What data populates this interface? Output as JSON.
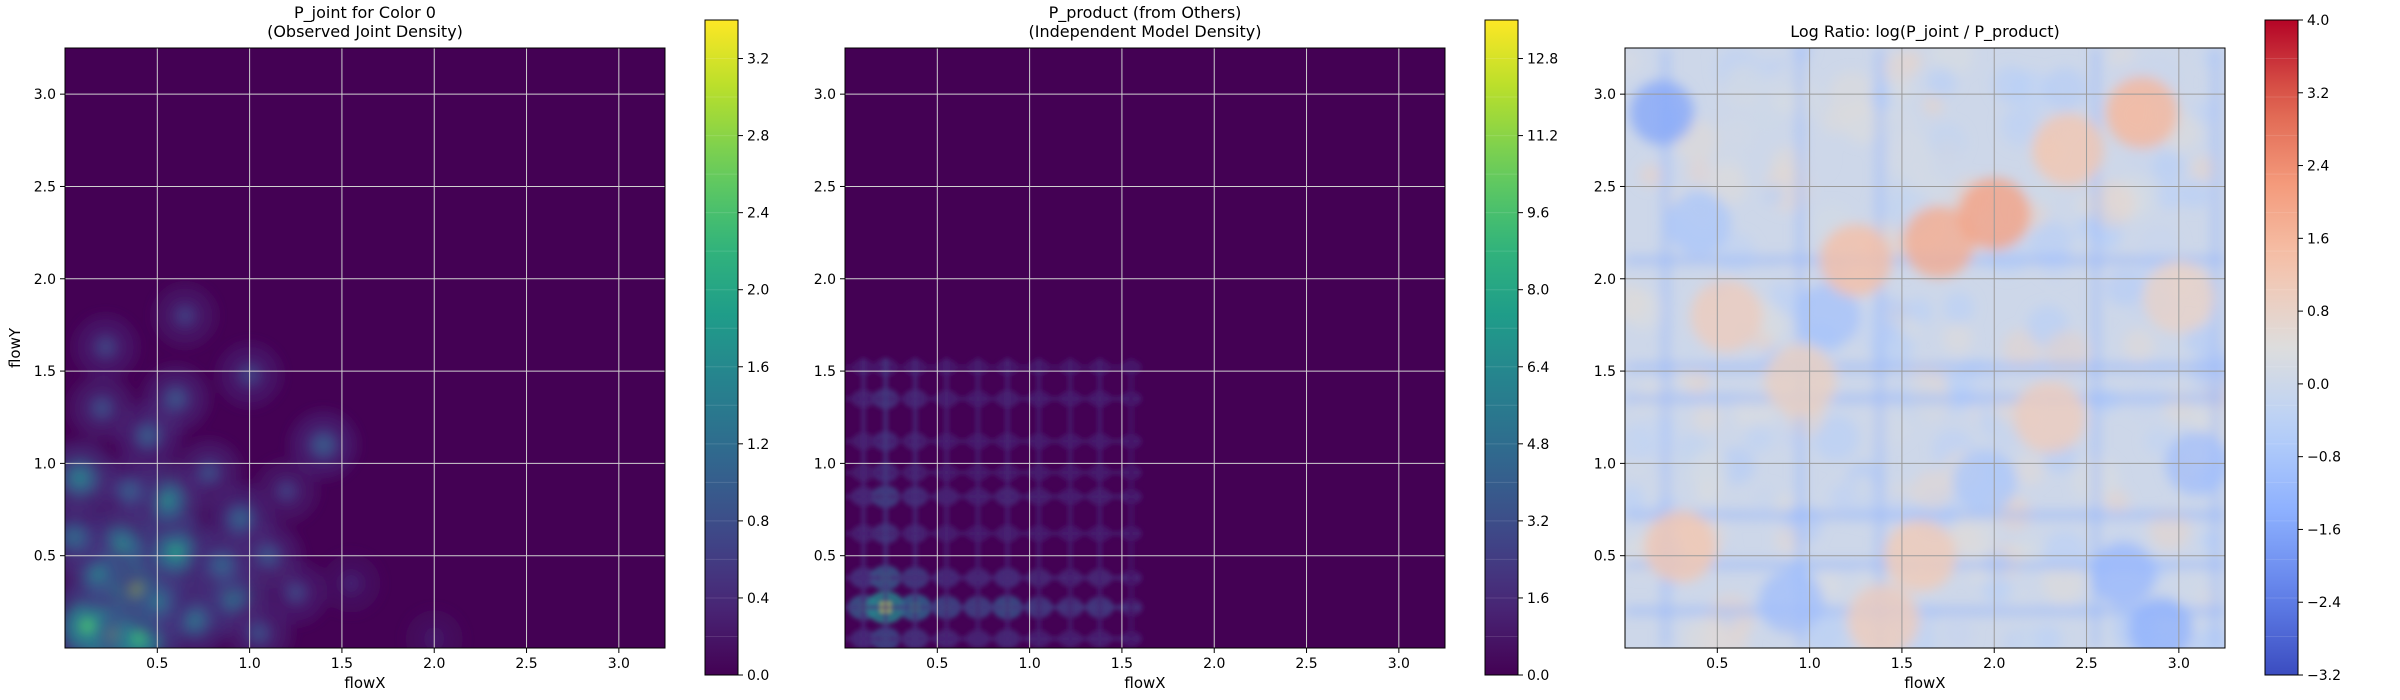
{
  "figure": {
    "panel_count": 3
  },
  "chart_data": [
    {
      "type": "heatmap",
      "title_lines": [
        "P_joint for Color 0",
        "(Observed Joint Density)"
      ],
      "xlabel": "flowX",
      "ylabel": "flowY",
      "xlim": [
        0.0,
        3.25
      ],
      "ylim": [
        0.0,
        3.25
      ],
      "xticks": [
        0.5,
        1.0,
        1.5,
        2.0,
        2.5,
        3.0
      ],
      "yticks": [
        0.5,
        1.0,
        1.5,
        2.0,
        2.5,
        3.0
      ],
      "grid": true,
      "colormap": "viridis",
      "colorbar": {
        "min": 0.0,
        "max": 3.4,
        "ticks": [
          0.0,
          0.4,
          0.8,
          1.2,
          1.6,
          2.0,
          2.4,
          2.8,
          3.2
        ]
      },
      "background_value": 0.0,
      "hotspots": [
        {
          "x": 0.25,
          "y": 0.08,
          "value": 3.2
        },
        {
          "x": 0.38,
          "y": 0.32,
          "value": 2.9
        },
        {
          "x": 0.12,
          "y": 0.12,
          "value": 2.4
        },
        {
          "x": 0.4,
          "y": 0.05,
          "value": 2.3
        },
        {
          "x": 0.6,
          "y": 0.52,
          "value": 2.0
        },
        {
          "x": 0.55,
          "y": 0.8,
          "value": 1.8
        },
        {
          "x": 0.3,
          "y": 0.55,
          "value": 1.9
        },
        {
          "x": 0.08,
          "y": 0.92,
          "value": 1.7
        },
        {
          "x": 0.9,
          "y": 0.28,
          "value": 1.6
        },
        {
          "x": 0.7,
          "y": 0.15,
          "value": 1.5
        },
        {
          "x": 0.95,
          "y": 0.7,
          "value": 1.3
        },
        {
          "x": 0.45,
          "y": 1.15,
          "value": 1.2
        },
        {
          "x": 0.2,
          "y": 1.3,
          "value": 1.0
        },
        {
          "x": 0.6,
          "y": 1.35,
          "value": 1.1
        },
        {
          "x": 1.05,
          "y": 0.08,
          "value": 1.0
        },
        {
          "x": 1.1,
          "y": 0.5,
          "value": 1.1
        },
        {
          "x": 1.4,
          "y": 1.1,
          "value": 1.2
        },
        {
          "x": 1.0,
          "y": 1.48,
          "value": 0.9
        },
        {
          "x": 0.65,
          "y": 1.8,
          "value": 0.8
        },
        {
          "x": 0.22,
          "y": 1.63,
          "value": 0.9
        },
        {
          "x": 0.18,
          "y": 0.4,
          "value": 1.6
        },
        {
          "x": 0.5,
          "y": 0.25,
          "value": 1.5
        },
        {
          "x": 0.78,
          "y": 0.95,
          "value": 1.0
        },
        {
          "x": 1.2,
          "y": 0.85,
          "value": 0.8
        },
        {
          "x": 0.05,
          "y": 0.6,
          "value": 1.4
        },
        {
          "x": 0.35,
          "y": 0.85,
          "value": 1.2
        },
        {
          "x": 1.25,
          "y": 0.3,
          "value": 0.9
        },
        {
          "x": 0.85,
          "y": 0.45,
          "value": 1.3
        },
        {
          "x": 2.0,
          "y": 0.05,
          "value": 0.4
        },
        {
          "x": 1.55,
          "y": 0.35,
          "value": 0.5
        }
      ]
    },
    {
      "type": "heatmap",
      "title_lines": [
        "P_product (from Others)",
        "(Independent Model Density)"
      ],
      "xlabel": "flowX",
      "ylabel": "",
      "xlim": [
        0.0,
        3.25
      ],
      "ylim": [
        0.0,
        3.25
      ],
      "xticks": [
        0.5,
        1.0,
        1.5,
        2.0,
        2.5,
        3.0
      ],
      "yticks": [
        0.5,
        1.0,
        1.5,
        2.0,
        2.5,
        3.0
      ],
      "grid": true,
      "colormap": "viridis",
      "colorbar": {
        "min": 0.0,
        "max": 13.6,
        "ticks": [
          0.0,
          1.6,
          3.2,
          4.8,
          6.4,
          8.0,
          9.6,
          11.2,
          12.8
        ]
      },
      "background_value": 0.0,
      "marginal_peaks_x": [
        {
          "x": 0.1,
          "w": 0.6
        },
        {
          "x": 0.22,
          "w": 1.0
        },
        {
          "x": 0.38,
          "w": 0.7
        },
        {
          "x": 0.55,
          "w": 0.5
        },
        {
          "x": 0.72,
          "w": 0.45
        },
        {
          "x": 0.88,
          "w": 0.55
        },
        {
          "x": 1.05,
          "w": 0.4
        },
        {
          "x": 1.22,
          "w": 0.35
        },
        {
          "x": 1.38,
          "w": 0.4
        },
        {
          "x": 1.55,
          "w": 0.2
        }
      ],
      "marginal_peaks_y": [
        {
          "y": 0.05,
          "w": 0.5
        },
        {
          "y": 0.22,
          "w": 1.0
        },
        {
          "y": 0.38,
          "w": 0.6
        },
        {
          "y": 0.62,
          "w": 0.35
        },
        {
          "y": 0.82,
          "w": 0.45
        },
        {
          "y": 0.95,
          "w": 0.3
        },
        {
          "y": 1.12,
          "w": 0.3
        },
        {
          "y": 1.35,
          "w": 0.35
        },
        {
          "y": 1.52,
          "w": 0.2
        }
      ],
      "peak_value": 12.8
    },
    {
      "type": "heatmap",
      "title_lines": [
        "Log Ratio: log(P_joint / P_product)"
      ],
      "xlabel": "flowX",
      "ylabel": "",
      "xlim": [
        0.0,
        3.25
      ],
      "ylim": [
        0.0,
        3.25
      ],
      "xticks": [
        0.5,
        1.0,
        1.5,
        2.0,
        2.5,
        3.0
      ],
      "yticks": [
        0.5,
        1.0,
        1.5,
        2.0,
        2.5,
        3.0
      ],
      "grid": true,
      "colormap": "coolwarm",
      "colorbar": {
        "min": -3.2,
        "max": 4.0,
        "ticks": [
          -3.2,
          -2.4,
          -1.6,
          -0.8,
          0.0,
          0.8,
          1.6,
          2.4,
          3.2,
          4.0
        ],
        "tick_labels": [
          "−3.2",
          "−2.4",
          "−1.6",
          "−0.8",
          "0.0",
          "0.8",
          "1.6",
          "2.4",
          "3.2",
          "4.0"
        ]
      },
      "warm_regions": [
        {
          "x": 1.7,
          "y": 2.2,
          "value": 1.8
        },
        {
          "x": 2.0,
          "y": 2.35,
          "value": 2.0
        },
        {
          "x": 2.8,
          "y": 2.9,
          "value": 1.6
        },
        {
          "x": 2.4,
          "y": 2.7,
          "value": 1.2
        },
        {
          "x": 1.25,
          "y": 2.1,
          "value": 1.4
        },
        {
          "x": 0.55,
          "y": 1.8,
          "value": 1.0
        },
        {
          "x": 0.3,
          "y": 0.55,
          "value": 1.2
        },
        {
          "x": 1.6,
          "y": 0.5,
          "value": 1.1
        },
        {
          "x": 2.3,
          "y": 1.25,
          "value": 1.0
        },
        {
          "x": 1.4,
          "y": 0.15,
          "value": 1.0
        },
        {
          "x": 0.95,
          "y": 1.45,
          "value": 0.9
        },
        {
          "x": 3.0,
          "y": 1.9,
          "value": 0.8
        }
      ],
      "cool_regions": [
        {
          "x": 0.2,
          "y": 2.9,
          "value": -1.6
        },
        {
          "x": 1.1,
          "y": 1.8,
          "value": -0.9
        },
        {
          "x": 0.9,
          "y": 0.25,
          "value": -1.0
        },
        {
          "x": 2.7,
          "y": 0.4,
          "value": -1.2
        },
        {
          "x": 0.4,
          "y": 2.3,
          "value": -0.8
        },
        {
          "x": 3.1,
          "y": 1.0,
          "value": -1.0
        },
        {
          "x": 1.95,
          "y": 0.9,
          "value": -0.8
        },
        {
          "x": 2.9,
          "y": 0.1,
          "value": -1.4
        }
      ],
      "cool_lines_y": [
        0.2,
        0.45,
        0.72,
        1.35,
        1.52,
        2.1
      ],
      "cool_lines_x": [
        0.22,
        0.95,
        1.38,
        2.55,
        3.2
      ]
    }
  ]
}
